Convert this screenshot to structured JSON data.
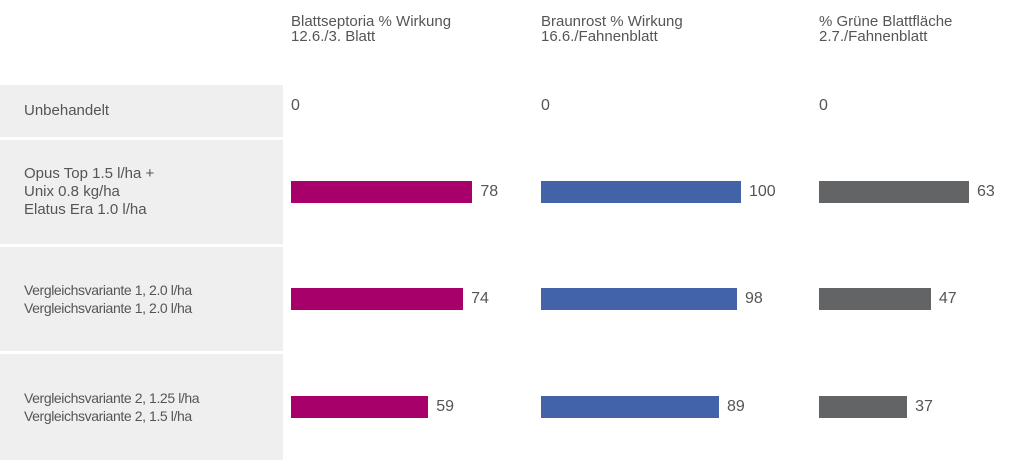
{
  "chart_data": {
    "type": "bar",
    "categories": [
      "Unbehandelt",
      "Opus Top 1.5 l/ha +\nUnix 0.8 kg/ha\nElatus Era 1.0 l/ha",
      "Vergleichsvariante 1, 2.0 l/ha\nVergleichsvariante 1, 2.0 l/ha",
      "Vergleichsvariante 2, 1.25 l/ha\nVergleichsvariante 2, 1.5  l/ha"
    ],
    "series": [
      {
        "name": "Blattseptoria % Wirkung",
        "subtitle": "12.6./3. Blatt",
        "color": "#a8006a",
        "xlim": [
          0,
          86
        ],
        "values": [
          0,
          78,
          74,
          59
        ]
      },
      {
        "name": "Braunrost % Wirkung",
        "subtitle": "16.6./Fahnenblatt",
        "color": "#4263a8",
        "xlim": [
          0,
          100
        ],
        "values": [
          0,
          100,
          98,
          89
        ]
      },
      {
        "name": "% Grüne Blattfläche",
        "subtitle": "2.7./Fahnenblatt",
        "color": "#636466",
        "xlim": [
          0,
          84
        ],
        "values": [
          0,
          63,
          47,
          37
        ]
      }
    ]
  }
}
